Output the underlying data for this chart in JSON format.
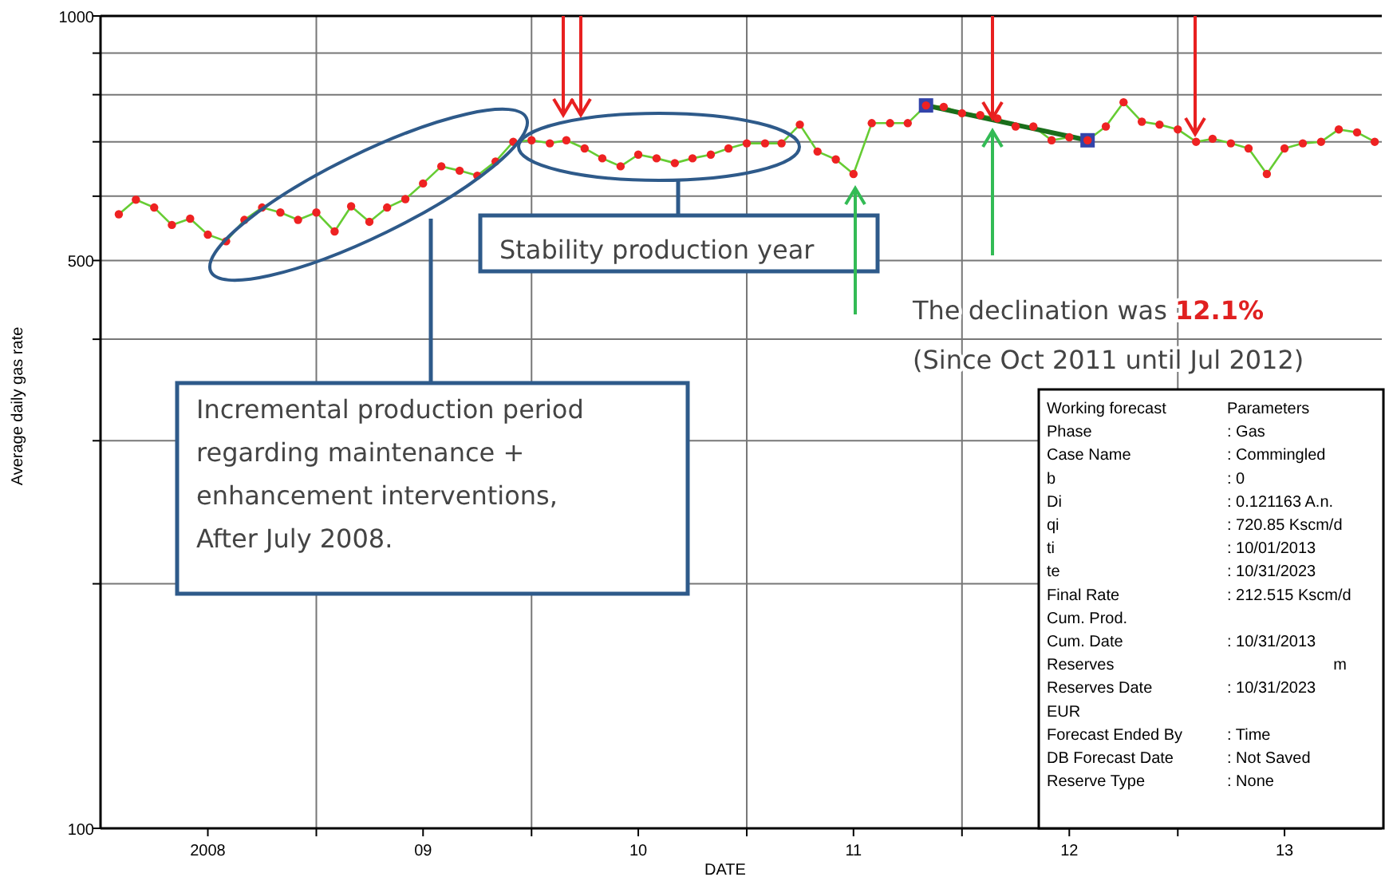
{
  "chart_data": {
    "type": "line",
    "xlabel": "DATE",
    "ylabel": "Average daily gas rate",
    "log": "y",
    "grid": true,
    "xlim": [
      "2008-01-01",
      "2013-12-13"
    ],
    "xticks": [
      {
        "value": "2009-01-01",
        "label": null
      },
      {
        "value": "2010-01-01",
        "label": null
      },
      {
        "value": "2011-01-01",
        "label": null
      },
      {
        "value": "2012-01-01",
        "label": null
      },
      {
        "value": "2013-01-01",
        "label": null
      },
      {
        "value": "2008-07-01",
        "label": "2008"
      },
      {
        "value": "2009-07-01",
        "label": "09"
      },
      {
        "value": "2010-07-01",
        "label": "10"
      },
      {
        "value": "2011-07-01",
        "label": "11"
      },
      {
        "value": "2012-07-01",
        "label": "12"
      },
      {
        "value": "2013-07-01",
        "label": "13"
      }
    ],
    "ylim": [
      100,
      1000
    ],
    "yticks": [
      100,
      {
        "value": 200,
        "label": null
      },
      {
        "value": 300,
        "label": null
      },
      {
        "value": 400,
        "label": null
      },
      500,
      {
        "value": 600,
        "label": null
      },
      {
        "value": 700,
        "label": null
      },
      {
        "value": 800,
        "label": null
      },
      {
        "value": 900,
        "label": null
      },
      1000
    ],
    "series": [
      {
        "color": "#66cc33",
        "marker": "none",
        "values": [
          570,
          594,
          581,
          553,
          563,
          538,
          528,
          561,
          581,
          573,
          561,
          573,
          543,
          583,
          558,
          581,
          595,
          622,
          653,
          645,
          636,
          662,
          700,
          703,
          697,
          703,
          687,
          668,
          653,
          675,
          668,
          659,
          668,
          675,
          687,
          697,
          697,
          697,
          735,
          681,
          666,
          639,
          738,
          738,
          738,
          776,
          773,
          759,
          755,
          748,
          731,
          731,
          703,
          709,
          703,
          731,
          783,
          741,
          735,
          725,
          700,
          706,
          697,
          687,
          639,
          687,
          697,
          700,
          725,
          719,
          700
        ]
      },
      {
        "type": "scatter",
        "color": "#ee2222",
        "marker": "circle",
        "values": [
          570,
          594,
          581,
          553,
          563,
          538,
          528,
          561,
          581,
          573,
          561,
          573,
          543,
          583,
          558,
          581,
          595,
          622,
          653,
          645,
          636,
          662,
          700,
          703,
          697,
          703,
          687,
          668,
          653,
          675,
          668,
          659,
          668,
          675,
          687,
          697,
          697,
          697,
          735,
          681,
          666,
          639,
          738,
          738,
          738,
          776,
          773,
          759,
          755,
          748,
          731,
          731,
          703,
          709,
          703,
          731,
          783,
          741,
          735,
          725,
          700,
          706,
          697,
          687,
          639,
          687,
          697,
          700,
          725,
          719,
          700
        ]
      },
      {
        "color": "#1a6e1a",
        "marker": "none",
        "x": [
          "2011-11",
          "2012-08"
        ],
        "values": [
          776,
          703
        ]
      },
      {
        "type": "scatter",
        "color": "#3344aa",
        "marker": "square",
        "x": [
          "2011-11",
          "2012-08"
        ],
        "values": [
          776,
          703
        ]
      }
    ],
    "x": [
      "2008-02",
      "2008-03",
      "2008-04",
      "2008-05",
      "2008-06",
      "2008-07",
      "2008-08",
      "2008-09",
      "2008-10",
      "2008-11",
      "2008-12",
      "2009-01",
      "2009-02",
      "2009-03",
      "2009-04",
      "2009-05",
      "2009-06",
      "2009-07",
      "2009-08",
      "2009-09",
      "2009-10",
      "2009-11",
      "2009-12",
      "2010-01",
      "2010-02",
      "2010-03",
      "2010-04",
      "2010-05",
      "2010-06",
      "2010-07",
      "2010-08",
      "2010-09",
      "2010-10",
      "2010-11",
      "2010-12",
      "2011-01",
      "2011-02",
      "2011-03",
      "2011-04",
      "2011-05",
      "2011-06",
      "2011-07",
      "2011-08",
      "2011-09",
      "2011-10",
      "2011-11",
      "2011-12",
      "2012-01",
      "2012-02",
      "2012-03",
      "2012-04",
      "2012-05",
      "2012-06",
      "2012-07",
      "2012-08",
      "2012-09",
      "2012-10",
      "2012-11",
      "2012-12",
      "2013-01",
      "2013-02",
      "2013-03",
      "2013-04",
      "2013-05",
      "2013-06",
      "2013-07",
      "2013-08",
      "2013-09",
      "2013-10",
      "2013-11",
      "2013-12"
    ],
    "annotations": [
      "Stability production year",
      "Incremental production period\nregarding maintenance +\nenhancement interventions,\nAfter July 2008.",
      "The declination was ",
      "12.1%",
      "(Since Oct 2011 until Jul 2012)",
      "Working forecast\tParameters\nPhase\t: Gas\nCase Name\t: Commingled\nb\t: 0\nDi\t: 0.121163 A.n.\nqi\t: 720.85 Kscm/d\nti\t: 10/01/2013\nte\t: 10/31/2023\nFinal Rate\t: 212.515 Kscm/d\nCum. Prod.\t\nCum. Date\t: 10/31/2013\nReserves\t                        m\nReserves Date\t: 10/31/2023\nEUR\t\nForecast Ended By\t: Time\nDB Forecast Date\t: Not Saved\nReserve Type\t: None"
    ]
  }
}
